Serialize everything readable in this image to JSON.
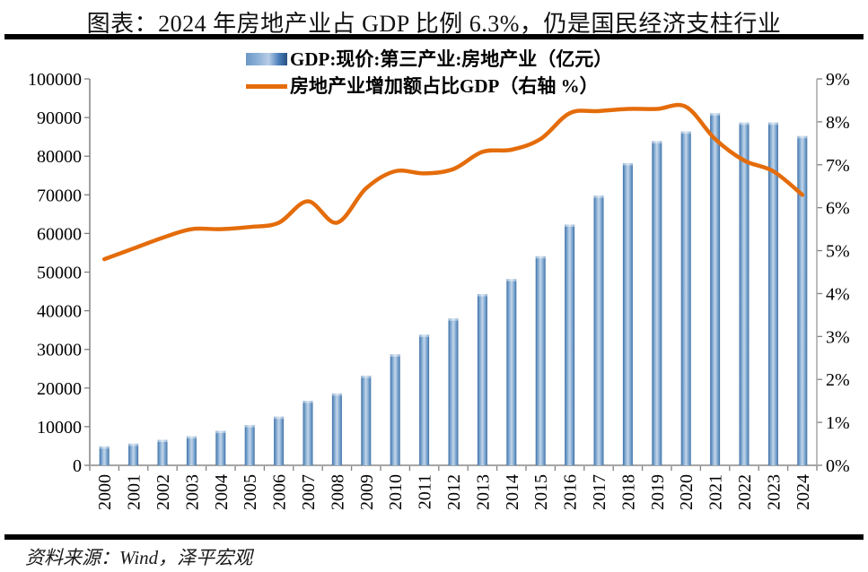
{
  "title": "图表：2024 年房地产业占 GDP 比例 6.3%，仍是国民经济支柱行业",
  "source": "资料来源：Wind，泽平宏观",
  "legend": {
    "bar_label": "GDP:现价:第三产业:房地产业（亿元）",
    "line_label": "房地产业增加额占比GDP（右轴 %）"
  },
  "colors": {
    "bar_edge": "#3e6fa6",
    "bar_mid": "#6f9cc9",
    "bar_light": "#c3d6ea",
    "line": "#e46c0a",
    "axis_line": "#a6a6a6",
    "tick": "#808080",
    "label": "#000000",
    "rule": "#000000"
  },
  "chart_data": {
    "type": "bar+line combo",
    "title": "图表：2024 年房地产业占 GDP 比例 6.3%，仍是国民经济支柱行业",
    "categories": [
      "2000",
      "2001",
      "2002",
      "2003",
      "2004",
      "2005",
      "2006",
      "2007",
      "2008",
      "2009",
      "2010",
      "2011",
      "2012",
      "2013",
      "2014",
      "2015",
      "2016",
      "2017",
      "2018",
      "2019",
      "2020",
      "2021",
      "2022",
      "2023",
      "2024"
    ],
    "series": [
      {
        "name": "GDP:现价:第三产业:房地产业（亿元）",
        "type": "bar",
        "axis": "left",
        "values": [
          4900,
          5600,
          6600,
          7500,
          8900,
          10400,
          12600,
          16700,
          18600,
          23200,
          28700,
          33800,
          38000,
          44300,
          48200,
          54100,
          62300,
          69800,
          78200,
          83900,
          86400,
          91100,
          88700,
          88700,
          85200
        ]
      },
      {
        "name": "房地产业增加额占比GDP（右轴 %）",
        "type": "line",
        "axis": "right",
        "values": [
          4.8,
          5.05,
          5.3,
          5.5,
          5.5,
          5.55,
          5.65,
          6.15,
          5.65,
          6.45,
          6.85,
          6.8,
          6.9,
          7.3,
          7.35,
          7.6,
          8.2,
          8.25,
          8.3,
          8.3,
          8.35,
          7.6,
          7.1,
          6.85,
          6.3
        ]
      }
    ],
    "left_axis": {
      "min": 0,
      "max": 100000,
      "step": 10000,
      "ticks": [
        0,
        10000,
        20000,
        30000,
        40000,
        50000,
        60000,
        70000,
        80000,
        90000,
        100000
      ]
    },
    "right_axis": {
      "min": 0,
      "max": 9,
      "step": 1,
      "suffix": "%",
      "ticks": [
        "0%",
        "1%",
        "2%",
        "3%",
        "4%",
        "5%",
        "6%",
        "7%",
        "8%",
        "9%"
      ]
    },
    "grid": false,
    "legend_position": "top-center",
    "x_label_rotation": -90
  }
}
